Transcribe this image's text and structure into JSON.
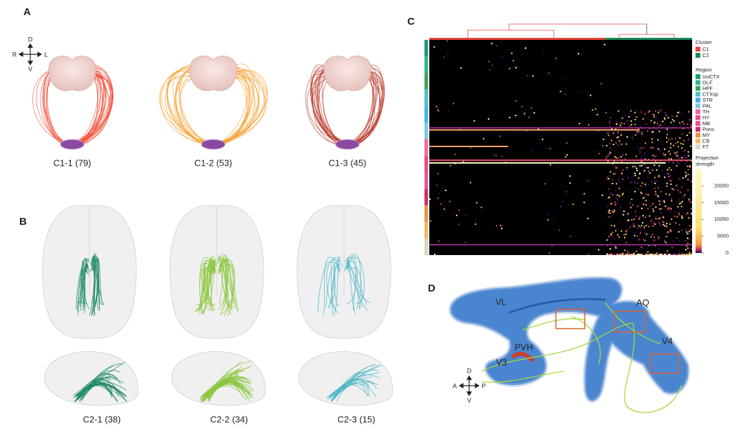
{
  "panel_a": {
    "label": "A",
    "compass": {
      "top": "D",
      "left": "R",
      "right": "L",
      "bottom": "V"
    },
    "groups": [
      {
        "caption": "C1-1 (79)",
        "color": "#f0503c"
      },
      {
        "caption": "C1-2 (53)",
        "color": "#f5a030"
      },
      {
        "caption": "C1-3 (45)",
        "color": "#b83a2a"
      }
    ]
  },
  "panel_b": {
    "label": "B",
    "groups": [
      {
        "caption": "C2-1 (38)",
        "color": "#1e8a62"
      },
      {
        "caption": "C2-2 (34)",
        "color": "#8cc63e"
      },
      {
        "caption": "C2-3 (15)",
        "color": "#4ab4c4"
      }
    ]
  },
  "panel_c": {
    "label": "C",
    "cluster_title": "Cluster",
    "clusters": [
      {
        "name": "C1",
        "color": "#e8433a"
      },
      {
        "name": "C2",
        "color": "#1a8a5a"
      }
    ],
    "region_title": "Region",
    "regions": [
      {
        "name": "IsoCTX",
        "color": "#1a9c78"
      },
      {
        "name": "OLF",
        "color": "#2fb889"
      },
      {
        "name": "HPF",
        "color": "#3aa65a"
      },
      {
        "name": "CTXsp",
        "color": "#4fc0d0"
      },
      {
        "name": "STR",
        "color": "#41b6e6"
      },
      {
        "name": "PAL",
        "color": "#7ec8e3"
      },
      {
        "name": "TH",
        "color": "#f06aa0"
      },
      {
        "name": "HY",
        "color": "#e84a8a"
      },
      {
        "name": "MB",
        "color": "#e8559a"
      },
      {
        "name": "Pons",
        "color": "#d02b6a"
      },
      {
        "name": "MY",
        "color": "#f0904a"
      },
      {
        "name": "CB",
        "color": "#f4b860"
      },
      {
        "name": "FT",
        "color": "#d8d8c0"
      }
    ],
    "strength_title": [
      "Projection",
      "strength"
    ],
    "strength_lim": [
      0,
      25000
    ],
    "strength_ticks": [
      20000,
      15000,
      10000,
      5000,
      0
    ]
  },
  "panel_d": {
    "label": "D",
    "labels": [
      {
        "text": "VL"
      },
      {
        "text": "AQ"
      },
      {
        "text": "PVH"
      },
      {
        "text": "V3"
      },
      {
        "text": "V4"
      }
    ],
    "compass": {
      "top": "D",
      "left": "A",
      "right": "P",
      "bottom": "V"
    }
  }
}
